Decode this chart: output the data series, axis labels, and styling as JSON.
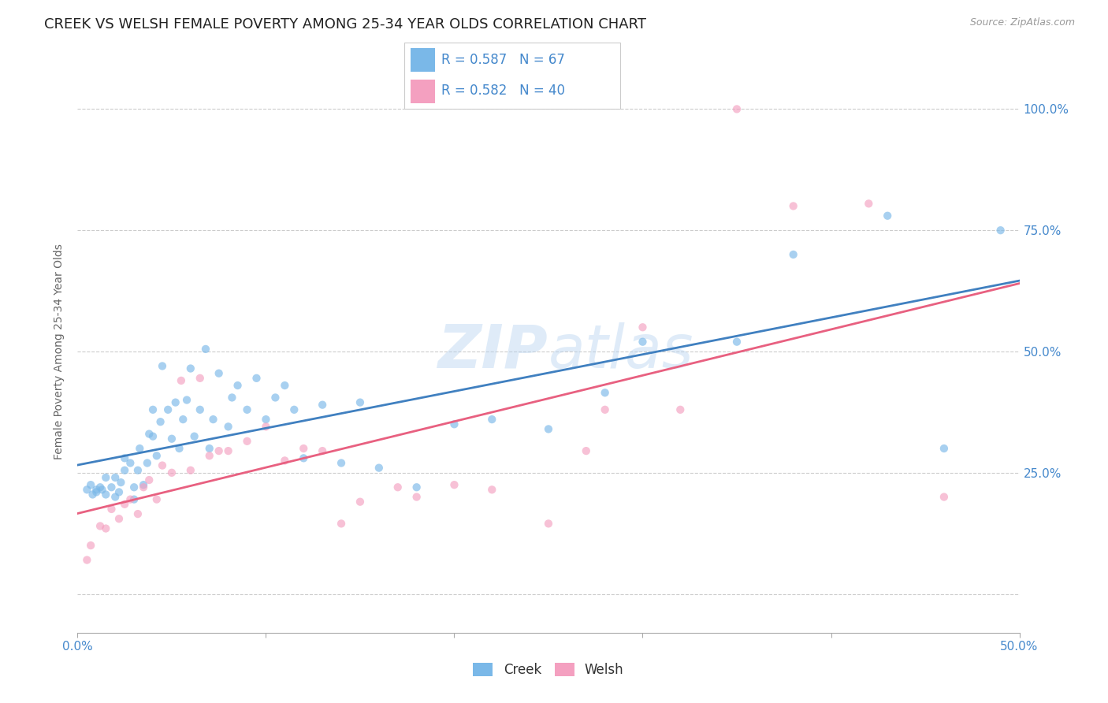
{
  "title": "CREEK VS WELSH FEMALE POVERTY AMONG 25-34 YEAR OLDS CORRELATION CHART",
  "source": "Source: ZipAtlas.com",
  "ylabel": "Female Poverty Among 25-34 Year Olds",
  "xlim": [
    0.0,
    0.5
  ],
  "ylim": [
    -0.08,
    1.08
  ],
  "xticks": [
    0.0,
    0.1,
    0.2,
    0.3,
    0.4,
    0.5
  ],
  "xticklabels": [
    "0.0%",
    "",
    "",
    "",
    "",
    "50.0%"
  ],
  "yticks": [
    0.0,
    0.25,
    0.5,
    0.75,
    1.0
  ],
  "yticklabels_right": [
    "",
    "25.0%",
    "50.0%",
    "75.0%",
    "100.0%"
  ],
  "creek_color": "#7ab8e8",
  "welsh_color": "#f4a0c0",
  "creek_line_color": "#4080c0",
  "welsh_line_color": "#e86080",
  "tick_color": "#4488cc",
  "background_color": "#ffffff",
  "grid_color": "#cccccc",
  "watermark_zip": "ZIP",
  "watermark_atlas": "atlas",
  "creek_R": "0.587",
  "creek_N": "67",
  "welsh_R": "0.582",
  "welsh_N": "40",
  "creek_scatter_x": [
    0.005,
    0.007,
    0.008,
    0.01,
    0.01,
    0.012,
    0.013,
    0.015,
    0.015,
    0.018,
    0.02,
    0.02,
    0.022,
    0.023,
    0.025,
    0.025,
    0.028,
    0.03,
    0.03,
    0.032,
    0.033,
    0.035,
    0.037,
    0.038,
    0.04,
    0.04,
    0.042,
    0.044,
    0.045,
    0.048,
    0.05,
    0.052,
    0.054,
    0.056,
    0.058,
    0.06,
    0.062,
    0.065,
    0.068,
    0.07,
    0.072,
    0.075,
    0.08,
    0.082,
    0.085,
    0.09,
    0.095,
    0.1,
    0.105,
    0.11,
    0.115,
    0.12,
    0.13,
    0.14,
    0.15,
    0.16,
    0.18,
    0.2,
    0.22,
    0.25,
    0.28,
    0.3,
    0.35,
    0.38,
    0.43,
    0.46,
    0.49
  ],
  "creek_scatter_y": [
    0.215,
    0.225,
    0.205,
    0.215,
    0.21,
    0.22,
    0.215,
    0.205,
    0.24,
    0.22,
    0.2,
    0.24,
    0.21,
    0.23,
    0.255,
    0.28,
    0.27,
    0.195,
    0.22,
    0.255,
    0.3,
    0.225,
    0.27,
    0.33,
    0.325,
    0.38,
    0.285,
    0.355,
    0.47,
    0.38,
    0.32,
    0.395,
    0.3,
    0.36,
    0.4,
    0.465,
    0.325,
    0.38,
    0.505,
    0.3,
    0.36,
    0.455,
    0.345,
    0.405,
    0.43,
    0.38,
    0.445,
    0.36,
    0.405,
    0.43,
    0.38,
    0.28,
    0.39,
    0.27,
    0.395,
    0.26,
    0.22,
    0.35,
    0.36,
    0.34,
    0.415,
    0.52,
    0.52,
    0.7,
    0.78,
    0.3,
    0.75
  ],
  "welsh_scatter_x": [
    0.005,
    0.007,
    0.012,
    0.015,
    0.018,
    0.022,
    0.025,
    0.028,
    0.032,
    0.035,
    0.038,
    0.042,
    0.045,
    0.05,
    0.055,
    0.06,
    0.065,
    0.07,
    0.075,
    0.08,
    0.09,
    0.1,
    0.11,
    0.12,
    0.13,
    0.14,
    0.15,
    0.17,
    0.18,
    0.2,
    0.22,
    0.25,
    0.27,
    0.28,
    0.3,
    0.32,
    0.35,
    0.38,
    0.42,
    0.46
  ],
  "welsh_scatter_y": [
    0.07,
    0.1,
    0.14,
    0.135,
    0.175,
    0.155,
    0.185,
    0.195,
    0.165,
    0.22,
    0.235,
    0.195,
    0.265,
    0.25,
    0.44,
    0.255,
    0.445,
    0.285,
    0.295,
    0.295,
    0.315,
    0.345,
    0.275,
    0.3,
    0.295,
    0.145,
    0.19,
    0.22,
    0.2,
    0.225,
    0.215,
    0.145,
    0.295,
    0.38,
    0.55,
    0.38,
    1.0,
    0.8,
    0.805,
    0.2
  ],
  "title_fontsize": 13,
  "label_fontsize": 10,
  "tick_fontsize": 11,
  "marker_size": 55,
  "marker_alpha": 0.65,
  "line_width": 2.0
}
